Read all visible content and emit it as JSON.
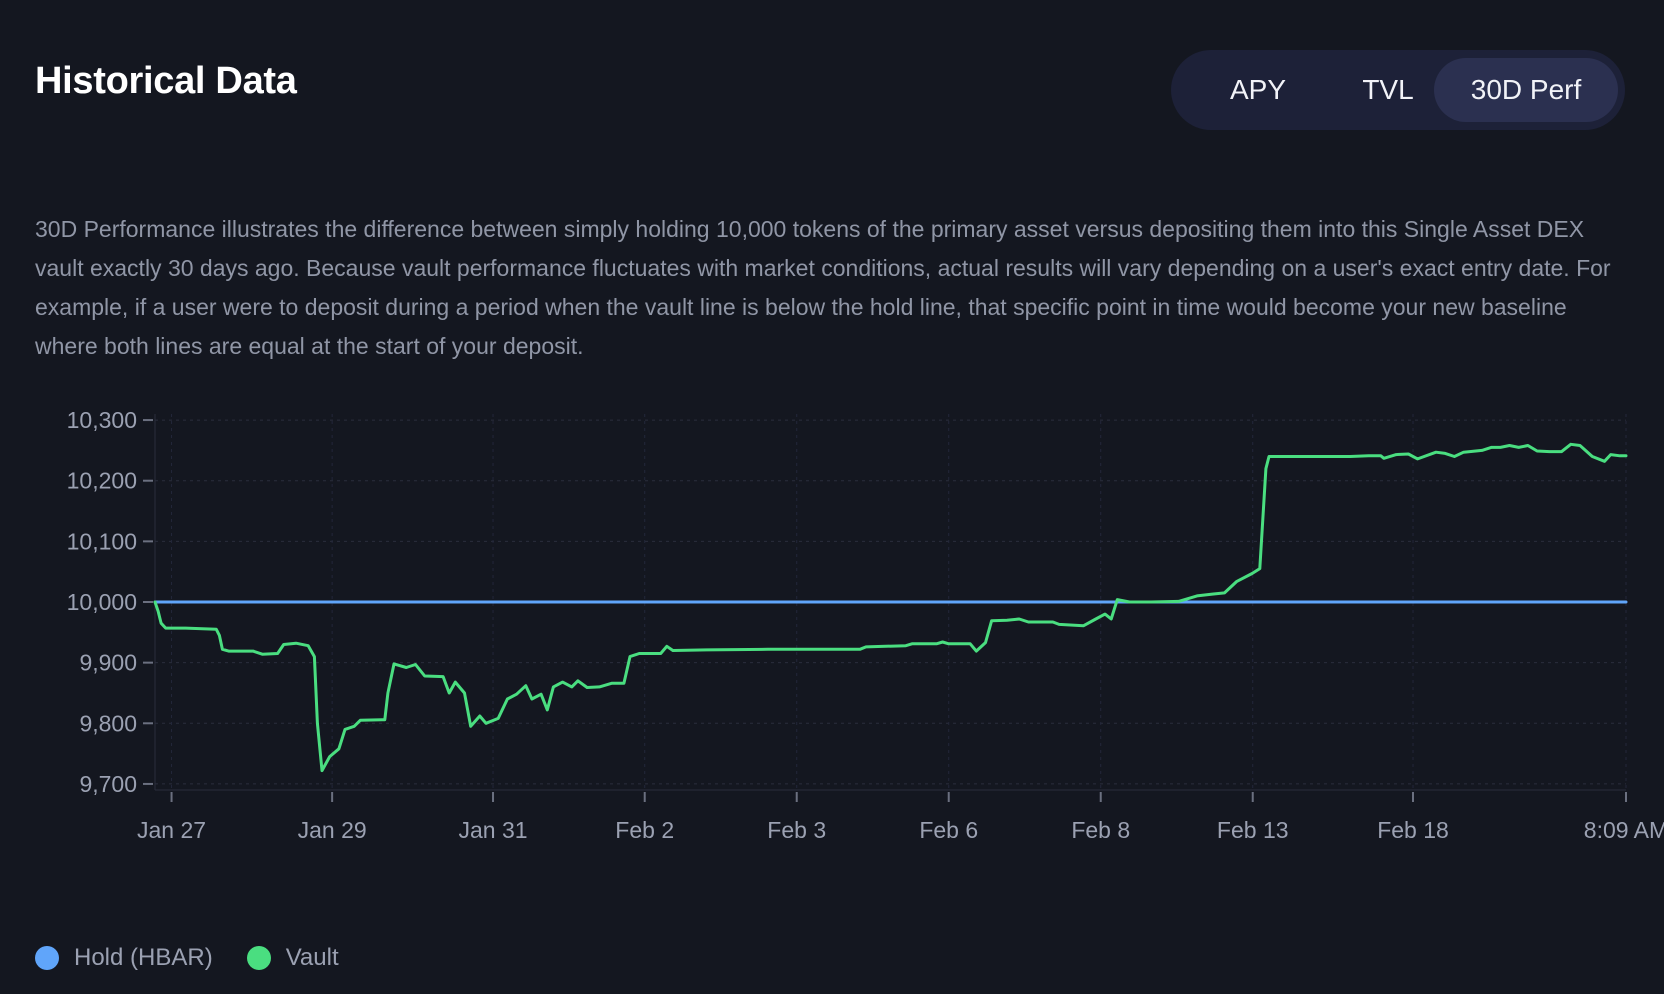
{
  "header": {
    "title": "Historical Data"
  },
  "tabs": [
    {
      "label": "APY",
      "active": false
    },
    {
      "label": "TVL",
      "active": false
    },
    {
      "label": "30D Perf",
      "active": true
    }
  ],
  "description": "30D Performance illustrates the difference between simply holding 10,000 tokens of the primary asset versus depositing them into this Single Asset DEX vault exactly 30 days ago. Because vault performance fluctuates with market conditions, actual results will vary depending on a user's exact entry date. For example, if a user were to deposit during a period when the vault line is below the hold line, that specific point in time would become your new baseline where both lines are equal at the start of your deposit.",
  "colors": {
    "background": "#141720",
    "hold": "#60a5fa",
    "vault": "#4ade80"
  },
  "chart_data": {
    "type": "line",
    "ylim": [
      9690,
      10310
    ],
    "yticks": [
      {
        "value": 10300,
        "label": "10,300"
      },
      {
        "value": 10200,
        "label": "10,200"
      },
      {
        "value": 10100,
        "label": "10,100"
      },
      {
        "value": 10000,
        "label": "10,000"
      },
      {
        "value": 9900,
        "label": "9,900"
      },
      {
        "value": 9800,
        "label": "9,800"
      },
      {
        "value": 9700,
        "label": "9,700"
      }
    ],
    "xticks": [
      {
        "index": 0.54,
        "label": "Jan 27"
      },
      {
        "index": 5.78,
        "label": "Jan 29"
      },
      {
        "index": 11.03,
        "label": "Jan 31"
      },
      {
        "index": 15.98,
        "label": "Feb 2"
      },
      {
        "index": 20.94,
        "label": "Feb 3"
      },
      {
        "index": 25.9,
        "label": "Feb 6"
      },
      {
        "index": 30.86,
        "label": "Feb 8"
      },
      {
        "index": 35.82,
        "label": "Feb 13"
      },
      {
        "index": 41.05,
        "label": "Feb 18"
      },
      {
        "index": 48.0,
        "label": "8:09 AM"
      }
    ],
    "grid": true,
    "legend_position": "bottom-left",
    "series": [
      {
        "name": "Hold (HBAR)",
        "color": "#60a5fa",
        "points": [
          [
            0,
            10000
          ],
          [
            48,
            10000
          ]
        ]
      },
      {
        "name": "Vault",
        "color": "#4ade80",
        "points": [
          [
            0,
            10000
          ],
          [
            0.1,
            9985
          ],
          [
            0.2,
            9965
          ],
          [
            0.35,
            9957
          ],
          [
            1.0,
            9957
          ],
          [
            2.0,
            9955
          ],
          [
            2.1,
            9945
          ],
          [
            2.2,
            9922
          ],
          [
            2.4,
            9919
          ],
          [
            3.2,
            9919
          ],
          [
            3.5,
            9914
          ],
          [
            4.0,
            9915
          ],
          [
            4.2,
            9930
          ],
          [
            4.6,
            9932
          ],
          [
            5.0,
            9928
          ],
          [
            5.2,
            9910
          ],
          [
            5.3,
            9800
          ],
          [
            5.45,
            9722
          ],
          [
            5.7,
            9745
          ],
          [
            6.0,
            9758
          ],
          [
            6.2,
            9790
          ],
          [
            6.5,
            9795
          ],
          [
            6.7,
            9805
          ],
          [
            7.5,
            9806
          ],
          [
            7.6,
            9850
          ],
          [
            7.8,
            9898
          ],
          [
            8.2,
            9892
          ],
          [
            8.5,
            9897
          ],
          [
            8.8,
            9878
          ],
          [
            9.4,
            9877
          ],
          [
            9.6,
            9850
          ],
          [
            9.8,
            9868
          ],
          [
            10.1,
            9850
          ],
          [
            10.3,
            9795
          ],
          [
            10.6,
            9812
          ],
          [
            10.8,
            9800
          ],
          [
            11.2,
            9808
          ],
          [
            11.5,
            9840
          ],
          [
            11.8,
            9848
          ],
          [
            12.1,
            9862
          ],
          [
            12.3,
            9840
          ],
          [
            12.6,
            9848
          ],
          [
            12.8,
            9822
          ],
          [
            13.0,
            9860
          ],
          [
            13.3,
            9868
          ],
          [
            13.6,
            9860
          ],
          [
            13.8,
            9870
          ],
          [
            14.1,
            9859
          ],
          [
            14.5,
            9860
          ],
          [
            14.9,
            9866
          ],
          [
            15.3,
            9866
          ],
          [
            15.5,
            9910
          ],
          [
            15.8,
            9915
          ],
          [
            16.5,
            9915
          ],
          [
            16.7,
            9927
          ],
          [
            16.9,
            9920
          ],
          [
            18,
            9921
          ],
          [
            20,
            9922
          ],
          [
            22,
            9922
          ],
          [
            23,
            9922
          ],
          [
            23.2,
            9926
          ],
          [
            24.5,
            9928
          ],
          [
            24.7,
            9931
          ],
          [
            25.5,
            9931
          ],
          [
            25.7,
            9934
          ],
          [
            25.9,
            9931
          ],
          [
            26.6,
            9931
          ],
          [
            26.8,
            9919
          ],
          [
            27.1,
            9933
          ],
          [
            27.3,
            9969
          ],
          [
            27.8,
            9970
          ],
          [
            28.2,
            9972
          ],
          [
            28.5,
            9967
          ],
          [
            29.3,
            9967
          ],
          [
            29.5,
            9963
          ],
          [
            30.3,
            9961
          ],
          [
            30.7,
            9972
          ],
          [
            31.0,
            9980
          ],
          [
            31.2,
            9972
          ],
          [
            31.4,
            10004
          ],
          [
            31.8,
            10000
          ],
          [
            32.5,
            10000
          ],
          [
            33.4,
            10001
          ],
          [
            34.0,
            10010
          ],
          [
            34.5,
            10013
          ],
          [
            34.9,
            10015
          ],
          [
            35.3,
            10034
          ],
          [
            35.8,
            10047
          ],
          [
            36.05,
            10055
          ],
          [
            36.25,
            10220
          ],
          [
            36.35,
            10240
          ],
          [
            37,
            10240
          ],
          [
            38,
            10240
          ],
          [
            39,
            10240
          ],
          [
            39.6,
            10241
          ],
          [
            40,
            10241
          ],
          [
            40.1,
            10237
          ],
          [
            40.5,
            10243
          ],
          [
            40.9,
            10244
          ],
          [
            41.2,
            10236
          ],
          [
            41.8,
            10247
          ],
          [
            42.1,
            10245
          ],
          [
            42.4,
            10240
          ],
          [
            42.7,
            10247
          ],
          [
            43.3,
            10250
          ],
          [
            43.6,
            10255
          ],
          [
            43.9,
            10255
          ],
          [
            44.2,
            10258
          ],
          [
            44.5,
            10255
          ],
          [
            44.8,
            10258
          ],
          [
            45.1,
            10249
          ],
          [
            45.5,
            10248
          ],
          [
            45.9,
            10248
          ],
          [
            46.2,
            10260
          ],
          [
            46.5,
            10258
          ],
          [
            46.9,
            10240
          ],
          [
            47.3,
            10232
          ],
          [
            47.5,
            10243
          ],
          [
            47.8,
            10241
          ],
          [
            48.0,
            10241
          ]
        ]
      }
    ]
  }
}
